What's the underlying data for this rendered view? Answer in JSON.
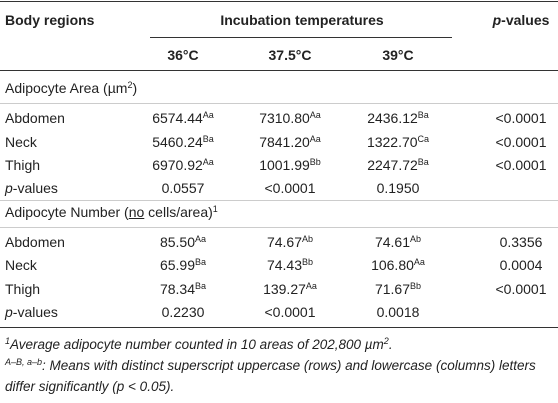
{
  "header": {
    "body_regions": "Body regions",
    "incubation": "Incubation temperatures",
    "p_values": [
      {
        "text": "p",
        "style": "italic"
      },
      {
        "text": "-values"
      }
    ],
    "temperatures": [
      "36°C",
      "37.5°C",
      "39°C"
    ]
  },
  "sections": [
    {
      "title": [
        {
          "text": "Adipocyte Area (µm"
        },
        {
          "text": "2",
          "style": "sup"
        },
        {
          "text": ")"
        }
      ],
      "rows": [
        {
          "label": "Abdomen",
          "cells": [
            {
              "value": "6574.44",
              "sup": "Aa"
            },
            {
              "value": "7310.80",
              "sup": "Aa"
            },
            {
              "value": "2436.12",
              "sup": "Ba"
            }
          ],
          "p": "<0.0001"
        },
        {
          "label": "Neck",
          "cells": [
            {
              "value": "5460.24",
              "sup": "Ba"
            },
            {
              "value": "7841.20",
              "sup": "Aa"
            },
            {
              "value": "1322.70",
              "sup": "Ca"
            }
          ],
          "p": "<0.0001"
        },
        {
          "label": "Thigh",
          "cells": [
            {
              "value": "6970.92",
              "sup": "Aa"
            },
            {
              "value": "1001.99",
              "sup": "Bb"
            },
            {
              "value": "2247.72",
              "sup": "Ba"
            }
          ],
          "p": "<0.0001"
        }
      ],
      "p_row": {
        "label": [
          {
            "text": "p",
            "style": "italic"
          },
          {
            "text": "-values"
          }
        ],
        "cells": [
          "0.0557",
          "<0.0001",
          "0.1950"
        ]
      }
    },
    {
      "title": [
        {
          "text": "Adipocyte Number ("
        },
        {
          "text": "no",
          "style": "underline"
        },
        {
          "text": " cells/area)"
        },
        {
          "text": "1",
          "style": "sup"
        }
      ],
      "rows": [
        {
          "label": "Abdomen",
          "cells": [
            {
              "value": "85.50",
              "sup": "Aa"
            },
            {
              "value": "74.67",
              "sup": "Ab"
            },
            {
              "value": "74.61",
              "sup": "Ab"
            }
          ],
          "p": "0.3356"
        },
        {
          "label": "Neck",
          "cells": [
            {
              "value": "65.99",
              "sup": "Ba"
            },
            {
              "value": "74.43",
              "sup": "Bb"
            },
            {
              "value": "106.80",
              "sup": "Aa"
            }
          ],
          "p": "0.0004"
        },
        {
          "label": "Thigh",
          "cells": [
            {
              "value": "78.34",
              "sup": "Ba"
            },
            {
              "value": "139.27",
              "sup": "Aa"
            },
            {
              "value": "71.67",
              "sup": "Bb"
            }
          ],
          "p": "<0.0001"
        }
      ],
      "p_row": {
        "label": [
          {
            "text": "p",
            "style": "italic"
          },
          {
            "text": "-values"
          }
        ],
        "cells": [
          "0.2230",
          "<0.0001",
          "0.0018"
        ]
      }
    }
  ],
  "footnotes": [
    [
      {
        "text": "1",
        "style": "sup"
      },
      {
        "text": "Average adipocyte number counted in 10 areas of 202,800 µm"
      },
      {
        "text": "2",
        "style": "sup"
      },
      {
        "text": "."
      }
    ],
    [
      {
        "text": "A–B, a–b",
        "style": "sup"
      },
      {
        "text": ": Means with distinct superscript uppercase (rows) and lowercase (columns) letters differ significantly (p < 0.05)."
      }
    ]
  ]
}
